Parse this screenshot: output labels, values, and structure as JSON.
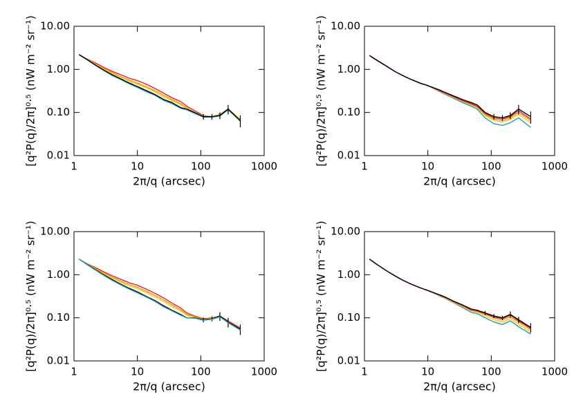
{
  "chart_data": [
    {
      "type": "line",
      "log_x": true,
      "log_y": true,
      "x_label": "2π/q (arcsec)",
      "y_label": "[q²P(q)/2π]⁰·⁵ (nW m⁻² sr⁻¹)",
      "xlim": [
        1,
        1000
      ],
      "ylim": [
        0.01,
        10
      ],
      "xticks": [
        1,
        10,
        100,
        1000
      ],
      "yticks": [
        0.01,
        {
          "value": 0.1,
          "label": "0.10"
        },
        {
          "value": 1,
          "label": "1.00"
        },
        {
          "value": 10,
          "label": "10.00"
        }
      ],
      "x": [
        1.2,
        1.6,
        2.2,
        3,
        4,
        5.5,
        7.5,
        10,
        14,
        19,
        26,
        35,
        48,
        60,
        80,
        110,
        150,
        200,
        270,
        420
      ],
      "series": [
        {
          "color": "#e8202a",
          "values": [
            2.2,
            1.75,
            1.4,
            1.1,
            0.9,
            0.75,
            0.62,
            0.55,
            0.45,
            0.36,
            0.28,
            0.22,
            0.18,
            0.14,
            0.11,
            0.085,
            0.08,
            0.09,
            0.12,
            0.07
          ]
        },
        {
          "color": "#f7941d",
          "values": [
            2.2,
            1.72,
            1.33,
            1.04,
            0.84,
            0.68,
            0.56,
            0.48,
            0.39,
            0.32,
            0.25,
            0.2,
            0.16,
            0.13,
            0.1,
            0.083,
            0.08,
            0.088,
            0.12,
            0.07
          ]
        },
        {
          "color": "#f5d10a",
          "values": [
            2.2,
            1.71,
            1.3,
            1.0,
            0.8,
            0.65,
            0.53,
            0.45,
            0.37,
            0.3,
            0.23,
            0.19,
            0.15,
            0.125,
            0.1,
            0.082,
            0.08,
            0.087,
            0.12,
            0.07
          ]
        },
        {
          "color": "#1e9bc0",
          "values": [
            2.2,
            1.68,
            1.22,
            0.93,
            0.72,
            0.58,
            0.46,
            0.38,
            0.3,
            0.25,
            0.19,
            0.16,
            0.125,
            0.115,
            0.095,
            0.078,
            0.078,
            0.083,
            0.115,
            0.063
          ]
        },
        {
          "color": "#000000",
          "values": [
            2.2,
            1.7,
            1.25,
            0.95,
            0.75,
            0.6,
            0.48,
            0.4,
            0.32,
            0.26,
            0.2,
            0.17,
            0.13,
            0.12,
            0.1,
            0.08,
            0.08,
            0.085,
            0.12,
            0.065
          ],
          "errors": [
            null,
            null,
            null,
            null,
            null,
            null,
            null,
            null,
            null,
            null,
            null,
            null,
            null,
            null,
            null,
            0.012,
            0.012,
            0.015,
            0.03,
            0.02
          ]
        }
      ]
    },
    {
      "type": "line",
      "log_x": true,
      "log_y": true,
      "x_label": "2π/q (arcsec)",
      "y_label": "[q²P(q)/2π]⁰·⁵ (nW m⁻² sr⁻¹)",
      "xlim": [
        1,
        1000
      ],
      "ylim": [
        0.01,
        10
      ],
      "xticks": [
        1,
        10,
        100,
        1000
      ],
      "yticks": [
        0.01,
        {
          "value": 0.1,
          "label": "0.10"
        },
        {
          "value": 1,
          "label": "1.00"
        },
        {
          "value": 10,
          "label": "10.00"
        }
      ],
      "x": [
        1.2,
        1.6,
        2.2,
        3,
        4,
        5.5,
        7.5,
        10,
        14,
        19,
        26,
        35,
        48,
        60,
        80,
        110,
        150,
        200,
        270,
        420
      ],
      "series": [
        {
          "color": "#1e9bc0",
          "values": [
            2.1,
            1.6,
            1.2,
            0.9,
            0.72,
            0.58,
            0.48,
            0.42,
            0.325,
            0.26,
            0.21,
            0.17,
            0.14,
            0.12,
            0.075,
            0.055,
            0.05,
            0.058,
            0.075,
            0.045
          ]
        },
        {
          "color": "#f5d10a",
          "values": [
            2.1,
            1.6,
            1.2,
            0.9,
            0.72,
            0.58,
            0.48,
            0.42,
            0.33,
            0.27,
            0.22,
            0.18,
            0.15,
            0.13,
            0.085,
            0.065,
            0.06,
            0.07,
            0.09,
            0.058
          ]
        },
        {
          "color": "#f7941d",
          "values": [
            2.1,
            1.6,
            1.2,
            0.9,
            0.72,
            0.58,
            0.48,
            0.42,
            0.335,
            0.275,
            0.225,
            0.185,
            0.155,
            0.135,
            0.09,
            0.07,
            0.065,
            0.075,
            0.1,
            0.065
          ]
        },
        {
          "color": "#e8202a",
          "values": [
            2.1,
            1.6,
            1.2,
            0.9,
            0.72,
            0.58,
            0.48,
            0.42,
            0.34,
            0.28,
            0.23,
            0.19,
            0.16,
            0.14,
            0.095,
            0.075,
            0.07,
            0.08,
            0.11,
            0.07
          ]
        },
        {
          "color": "#000000",
          "values": [
            2.1,
            1.6,
            1.2,
            0.9,
            0.72,
            0.58,
            0.48,
            0.42,
            0.35,
            0.29,
            0.24,
            0.2,
            0.17,
            0.15,
            0.1,
            0.08,
            0.075,
            0.085,
            0.12,
            0.08
          ],
          "errors": [
            null,
            null,
            null,
            null,
            null,
            null,
            null,
            null,
            null,
            null,
            null,
            null,
            null,
            null,
            null,
            0.012,
            0.012,
            0.015,
            0.03,
            0.025
          ]
        }
      ]
    },
    {
      "type": "line",
      "log_x": true,
      "log_y": true,
      "x_label": "2π/q (arcsec)",
      "y_label": "[q²P(q)/2π]⁰·⁵ (nW m⁻² sr⁻¹)",
      "xlim": [
        1,
        1000
      ],
      "ylim": [
        0.01,
        10
      ],
      "xticks": [
        1,
        10,
        100,
        1000
      ],
      "yticks": [
        0.01,
        {
          "value": 0.1,
          "label": "0.10"
        },
        {
          "value": 1,
          "label": "1.00"
        },
        {
          "value": 10,
          "label": "10.00"
        }
      ],
      "x": [
        1.2,
        1.6,
        2.2,
        3,
        4,
        5.5,
        7.5,
        10,
        14,
        19,
        26,
        35,
        48,
        60,
        80,
        110,
        150,
        200,
        270,
        420
      ],
      "series": [
        {
          "color": "#e8202a",
          "values": [
            2.3,
            1.8,
            1.45,
            1.15,
            0.95,
            0.78,
            0.65,
            0.57,
            0.46,
            0.37,
            0.29,
            0.22,
            0.17,
            0.13,
            0.11,
            0.095,
            0.1,
            0.11,
            0.085,
            0.058
          ]
        },
        {
          "color": "#f7941d",
          "values": [
            2.3,
            1.78,
            1.38,
            1.08,
            0.88,
            0.71,
            0.59,
            0.51,
            0.41,
            0.33,
            0.26,
            0.2,
            0.155,
            0.12,
            0.105,
            0.092,
            0.098,
            0.11,
            0.082,
            0.056
          ]
        },
        {
          "color": "#f5d10a",
          "values": [
            2.3,
            1.76,
            1.35,
            1.04,
            0.83,
            0.67,
            0.55,
            0.47,
            0.38,
            0.3,
            0.24,
            0.18,
            0.145,
            0.115,
            0.103,
            0.09,
            0.097,
            0.11,
            0.08,
            0.055
          ]
        },
        {
          "color": "#000000",
          "values": [
            2.3,
            1.75,
            1.3,
            0.98,
            0.77,
            0.6,
            0.48,
            0.4,
            0.31,
            0.25,
            0.19,
            0.15,
            0.12,
            0.1,
            0.1,
            0.09,
            0.095,
            0.11,
            0.08,
            0.055
          ],
          "errors": [
            null,
            null,
            null,
            null,
            null,
            null,
            null,
            null,
            null,
            null,
            null,
            null,
            null,
            null,
            null,
            0.012,
            0.012,
            0.025,
            0.02,
            0.015
          ]
        },
        {
          "color": "#1e9bc0",
          "values": [
            2.3,
            1.72,
            1.27,
            0.95,
            0.74,
            0.58,
            0.46,
            0.38,
            0.3,
            0.24,
            0.18,
            0.145,
            0.115,
            0.1,
            0.098,
            0.088,
            0.093,
            0.105,
            0.077,
            0.052
          ]
        }
      ]
    },
    {
      "type": "line",
      "log_x": true,
      "log_y": true,
      "x_label": "2π/q (arcsec)",
      "y_label": "[q²P(q)/2π]⁰·⁵ (nW m⁻² sr⁻¹)",
      "xlim": [
        1,
        1000
      ],
      "ylim": [
        0.01,
        10
      ],
      "xticks": [
        1,
        10,
        100,
        1000
      ],
      "yticks": [
        0.01,
        {
          "value": 0.1,
          "label": "0.10"
        },
        {
          "value": 1,
          "label": "1.00"
        },
        {
          "value": 10,
          "label": "10.00"
        }
      ],
      "x": [
        1.2,
        1.6,
        2.2,
        3,
        4,
        5.5,
        7.5,
        10,
        14,
        19,
        26,
        35,
        48,
        60,
        80,
        110,
        150,
        200,
        270,
        420
      ],
      "series": [
        {
          "color": "#1e9bc0",
          "values": [
            2.3,
            1.7,
            1.25,
            0.95,
            0.75,
            0.6,
            0.5,
            0.43,
            0.34,
            0.28,
            0.22,
            0.175,
            0.135,
            0.125,
            0.1,
            0.08,
            0.07,
            0.085,
            0.062,
            0.042
          ]
        },
        {
          "color": "#f5d10a",
          "values": [
            2.3,
            1.7,
            1.25,
            0.95,
            0.75,
            0.6,
            0.5,
            0.43,
            0.345,
            0.285,
            0.225,
            0.185,
            0.145,
            0.135,
            0.11,
            0.09,
            0.08,
            0.095,
            0.07,
            0.048
          ]
        },
        {
          "color": "#f7941d",
          "values": [
            2.3,
            1.7,
            1.25,
            0.95,
            0.75,
            0.6,
            0.5,
            0.43,
            0.35,
            0.29,
            0.23,
            0.19,
            0.15,
            0.14,
            0.12,
            0.1,
            0.09,
            0.105,
            0.08,
            0.053
          ]
        },
        {
          "color": "#e8202a",
          "values": [
            2.3,
            1.7,
            1.25,
            0.95,
            0.75,
            0.6,
            0.5,
            0.43,
            0.355,
            0.295,
            0.235,
            0.195,
            0.155,
            0.145,
            0.125,
            0.105,
            0.095,
            0.115,
            0.085,
            0.057
          ]
        },
        {
          "color": "#000000",
          "values": [
            2.3,
            1.7,
            1.25,
            0.95,
            0.75,
            0.6,
            0.5,
            0.43,
            0.36,
            0.3,
            0.24,
            0.2,
            0.16,
            0.15,
            0.13,
            0.11,
            0.1,
            0.12,
            0.09,
            0.06
          ],
          "errors": [
            null,
            null,
            null,
            null,
            null,
            null,
            null,
            null,
            null,
            null,
            null,
            null,
            null,
            null,
            0.015,
            0.012,
            0.012,
            0.02,
            0.015,
            0.015
          ]
        }
      ]
    }
  ]
}
